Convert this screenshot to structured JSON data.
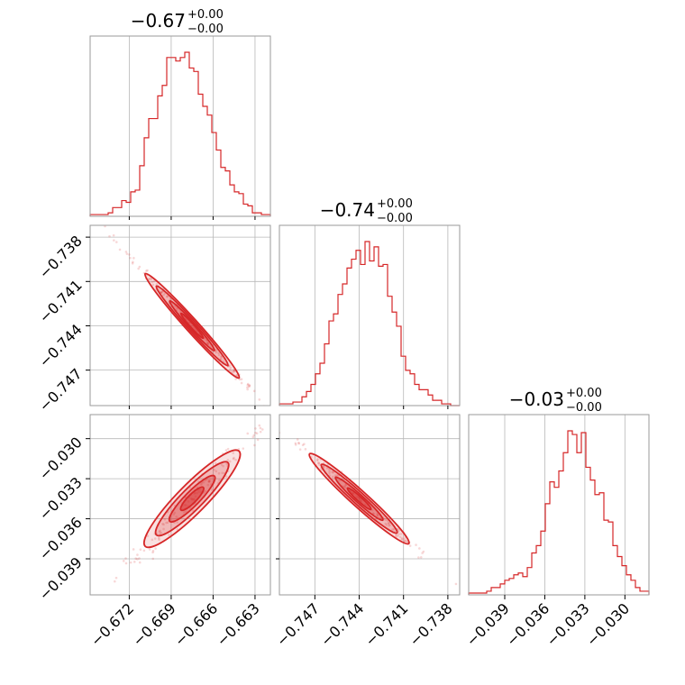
{
  "color": "#d62728",
  "titles": {
    "p0": {
      "main": "−0.67",
      "sup": "+0.00",
      "sub": "−0.00"
    },
    "p1": {
      "main": "−0.74",
      "sup": "+0.00",
      "sub": "−0.00"
    },
    "p2": {
      "main": "−0.03",
      "sup": "+0.00",
      "sub": "−0.00"
    }
  },
  "chart_data": {
    "type": "corner",
    "parameters": [
      {
        "name": "p0",
        "range": [
          -0.6748,
          -0.6619
        ],
        "ticks": [
          -0.672,
          -0.669,
          -0.666,
          -0.663
        ],
        "tick_labels": [
          "−0.672",
          "−0.669",
          "−0.666",
          "−0.663"
        ],
        "center": -0.6675,
        "sd": 0.0016
      },
      {
        "name": "p1",
        "range": [
          -0.7494,
          -0.7372
        ],
        "ticks": [
          -0.747,
          -0.744,
          -0.741,
          -0.738
        ],
        "tick_labels": [
          "−0.747",
          "−0.744",
          "−0.741",
          "−0.738"
        ],
        "center": -0.744,
        "sd": 0.0016
      },
      {
        "name": "p2",
        "range": [
          -0.0417,
          -0.0282
        ],
        "ticks": [
          -0.039,
          -0.036,
          -0.033,
          -0.03
        ],
        "tick_labels": [
          "−0.039",
          "−0.036",
          "−0.033",
          "−0.030"
        ],
        "center": -0.0345,
        "sd": 0.0018
      }
    ],
    "histograms": [
      {
        "param": "p0",
        "bins": 40,
        "counts": [
          1,
          1,
          1,
          1,
          2,
          5,
          5,
          9,
          8,
          14,
          15,
          29,
          45,
          56,
          56,
          69,
          75,
          91,
          91,
          89,
          91,
          94,
          85,
          83,
          70,
          63,
          58,
          48,
          38,
          28,
          26,
          18,
          14,
          13,
          7,
          6,
          2,
          2,
          1,
          1
        ]
      },
      {
        "param": "p1",
        "bins": 40,
        "counts": [
          1,
          1,
          1,
          2,
          2,
          5,
          8,
          12,
          18,
          24,
          35,
          48,
          52,
          63,
          69,
          78,
          83,
          88,
          80,
          93,
          82,
          90,
          79,
          80,
          62,
          53,
          45,
          28,
          20,
          18,
          12,
          9,
          9,
          6,
          3,
          3,
          1,
          1,
          0,
          0
        ]
      },
      {
        "param": "p2",
        "bins": 40,
        "counts": [
          1,
          1,
          1,
          1,
          2,
          4,
          4,
          6,
          8,
          9,
          11,
          12,
          10,
          15,
          23,
          27,
          35,
          50,
          62,
          59,
          68,
          78,
          90,
          88,
          78,
          89,
          70,
          63,
          55,
          56,
          41,
          40,
          27,
          21,
          16,
          11,
          8,
          4,
          2,
          2
        ]
      }
    ],
    "correlations": [
      {
        "x": "p0",
        "y": "p1",
        "slope": -1.05,
        "scatter": 0.00018
      },
      {
        "x": "p0",
        "y": "p2",
        "slope": 1.06,
        "scatter": 0.00045
      },
      {
        "x": "p1",
        "y": "p2",
        "slope": -1.0,
        "scatter": 0.00025
      }
    ],
    "grid": true
  }
}
